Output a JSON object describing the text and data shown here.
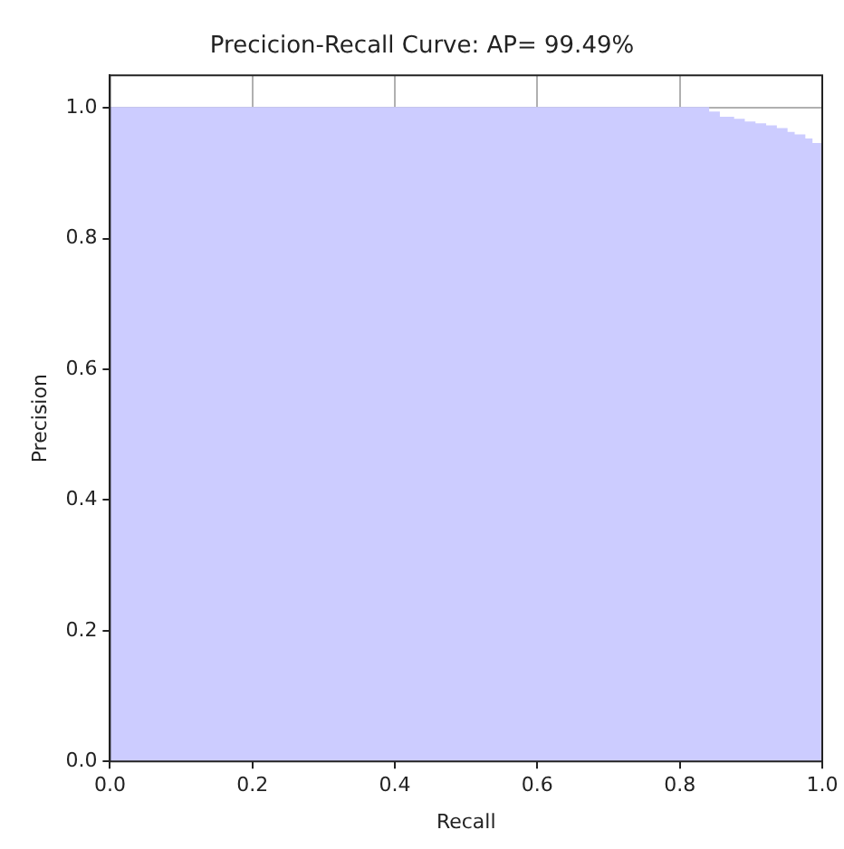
{
  "chart_data": {
    "type": "step",
    "title": "Precicion-Recall Curve: AP= 99.49%",
    "xlabel": "Recall",
    "ylabel": "Precision",
    "x": [
      0,
      0.84,
      0.855,
      0.875,
      0.89,
      0.905,
      0.92,
      0.935,
      0.95,
      0.96,
      0.975,
      0.985,
      1.0
    ],
    "values": [
      1.0,
      0.993,
      0.985,
      0.982,
      0.978,
      0.975,
      0.972,
      0.968,
      0.962,
      0.958,
      0.952,
      0.945,
      0.94
    ],
    "color": "#ccccff",
    "xlim": [
      0,
      1
    ],
    "ylim": [
      0,
      1.05
    ],
    "xticks": [
      {
        "value": 0,
        "label": "0.0"
      },
      0.2,
      0.4,
      0.6,
      0.8,
      {
        "value": 1,
        "label": "1.0"
      }
    ],
    "yticks": [
      {
        "value": 0,
        "label": "0.0"
      },
      0.2,
      0.4,
      0.6,
      0.8,
      {
        "value": 1,
        "label": "1.0"
      }
    ],
    "grid": true,
    "legend": false
  }
}
